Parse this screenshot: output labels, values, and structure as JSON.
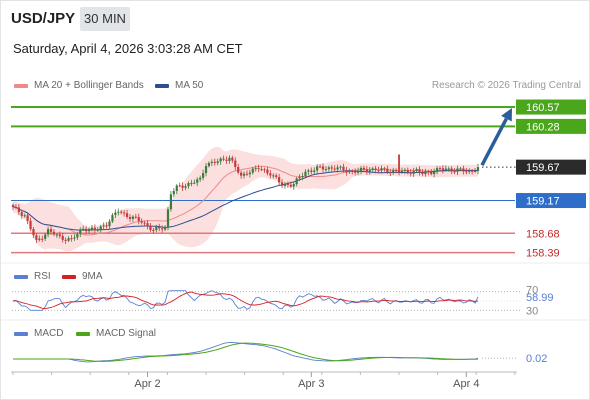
{
  "header": {
    "symbol": "USD/JPY",
    "timeframe": "30 MIN",
    "datetime": "Saturday, April 4, 2026 3:03:28 AM CET",
    "credit": "Research © 2026 Trading Central"
  },
  "legend": {
    "ma20": "MA 20 + Bollinger Bands",
    "ma50": "MA 50",
    "rsi": "RSI",
    "rsi9": "9MA",
    "macd": "MACD",
    "macd_signal": "MACD Signal"
  },
  "colors": {
    "bull": "#3c7b3c",
    "bear": "#c43b3b",
    "bollinger_fill": "#fbd9d9",
    "ma20": "#f08a8a",
    "ma50": "#2c4f8f",
    "resistance": "#4aa61a",
    "pivot": "#2e6ec8",
    "support": "#e07a7a",
    "arrow": "#2c5d9b",
    "rsi": "#5b7fd4",
    "rsi9": "#d42020",
    "macd": "#5b7fd4",
    "macd_signal": "#4aa61a"
  },
  "chart_data": [
    {
      "type": "candlestick",
      "title": "USD/JPY 30 MIN",
      "x_tick_labels": [
        "Apr 2",
        "Apr 3",
        "Apr 4"
      ],
      "y_range": [
        158.25,
        160.75
      ],
      "last_price": 159.67,
      "levels": [
        {
          "value": 160.57,
          "label": "160.57",
          "kind": "resistance"
        },
        {
          "value": 160.28,
          "label": "160.28",
          "kind": "resistance"
        },
        {
          "value": 159.17,
          "label": "159.17",
          "kind": "pivot"
        },
        {
          "value": 158.68,
          "label": "158.68",
          "kind": "support"
        },
        {
          "value": 158.39,
          "label": "158.39",
          "kind": "support"
        }
      ],
      "forecast_arrow": {
        "from": 159.67,
        "to": 160.57
      },
      "anchors": [
        [
          0,
          159.06
        ],
        [
          4,
          158.95
        ],
        [
          8,
          158.55
        ],
        [
          12,
          158.72
        ],
        [
          16,
          158.62
        ],
        [
          20,
          158.58
        ],
        [
          24,
          158.76
        ],
        [
          28,
          158.72
        ],
        [
          32,
          158.82
        ],
        [
          36,
          159.02
        ],
        [
          40,
          158.92
        ],
        [
          44,
          158.86
        ],
        [
          48,
          158.72
        ],
        [
          52,
          158.78
        ],
        [
          54,
          159.28
        ],
        [
          56,
          159.36
        ],
        [
          60,
          159.42
        ],
        [
          64,
          159.48
        ],
        [
          66,
          159.72
        ],
        [
          70,
          159.75
        ],
        [
          74,
          159.82
        ],
        [
          78,
          159.52
        ],
        [
          80,
          159.6
        ],
        [
          84,
          159.65
        ],
        [
          88,
          159.58
        ],
        [
          92,
          159.4
        ],
        [
          96,
          159.42
        ],
        [
          100,
          159.6
        ],
        [
          104,
          159.65
        ],
        [
          110,
          159.66
        ],
        [
          116,
          159.6
        ],
        [
          122,
          159.64
        ],
        [
          128,
          159.62
        ],
        [
          134,
          159.6
        ],
        [
          138,
          159.62
        ],
        [
          140,
          159.57
        ],
        [
          146,
          159.64
        ],
        [
          152,
          159.63
        ],
        [
          156,
          159.6
        ],
        [
          159,
          159.67
        ]
      ]
    },
    {
      "type": "line",
      "name": "RSI",
      "y_tick_labels": [
        "70",
        "30"
      ],
      "last_value": 58.99,
      "last_label": "58.99"
    },
    {
      "type": "line",
      "name": "MACD",
      "last_value": 0.02,
      "last_label": "0.02"
    }
  ]
}
